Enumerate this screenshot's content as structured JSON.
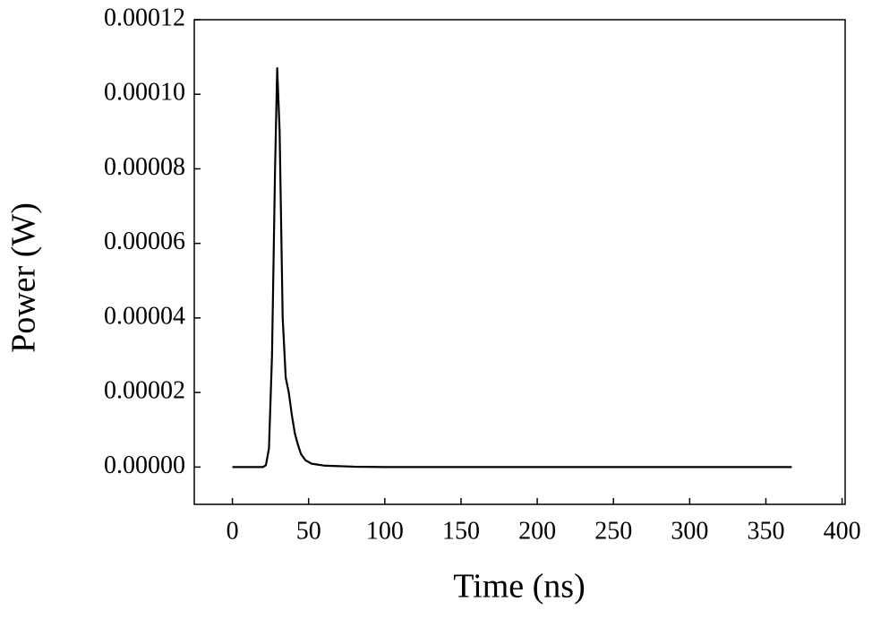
{
  "chart_data": {
    "type": "line",
    "x_label": "Time (ns)",
    "y_label": "Power (W)",
    "series": [
      {
        "color": "#000000",
        "x": [
          0,
          10,
          20,
          22,
          24,
          26,
          28,
          29.4,
          31,
          33,
          35,
          37,
          39,
          41,
          43,
          45,
          48,
          52,
          60,
          80,
          100,
          200,
          300,
          367
        ],
        "values": [
          0,
          0,
          0,
          5e-07,
          5e-06,
          3e-05,
          8e-05,
          0.000107,
          9e-05,
          4e-05,
          2.4e-05,
          2e-05,
          1.4e-05,
          9e-06,
          6e-06,
          3.5e-06,
          1.8e-06,
          9e-07,
          4e-07,
          1e-07,
          0,
          0,
          0,
          0
        ]
      }
    ],
    "xlim": [
      -25,
      402
    ],
    "ylim": [
      -1e-05,
      0.00012
    ],
    "xticks": [
      0,
      50,
      100,
      150,
      200,
      250,
      300,
      350,
      400
    ],
    "yticks": [
      {
        "value": 0,
        "label": "0.00000"
      },
      {
        "value": 2e-05,
        "label": "0.00002"
      },
      {
        "value": 4e-05,
        "label": "0.00004"
      },
      {
        "value": 6e-05,
        "label": "0.00006"
      },
      {
        "value": 8e-05,
        "label": "0.00008"
      },
      {
        "value": 0.0001,
        "label": "0.00010"
      },
      {
        "value": 0.00012,
        "label": "0.00012"
      }
    ]
  }
}
